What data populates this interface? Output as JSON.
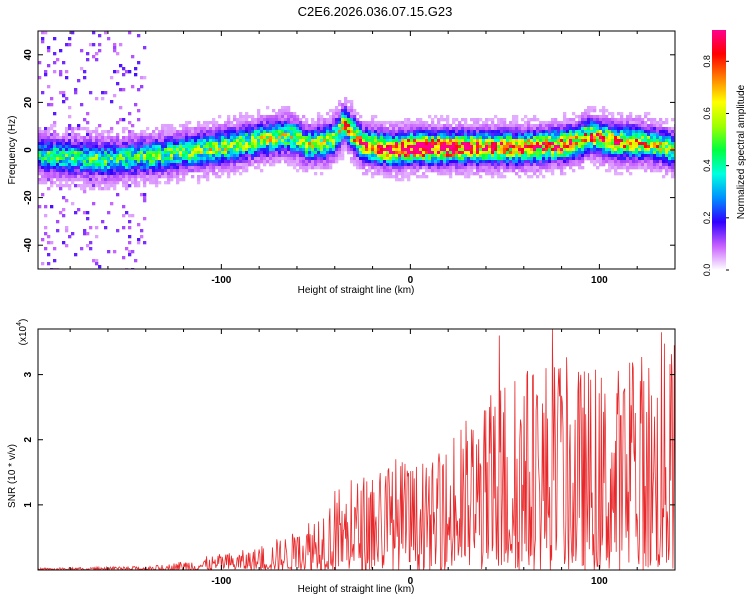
{
  "chart_data": [
    {
      "type": "heatmap",
      "title": "C2E6.2026.036.07.15.G23",
      "xlabel": "Height of straight line (km)",
      "ylabel": "Frequency (Hz)",
      "xlim": [
        -197,
        140
      ],
      "ylim": [
        -50,
        50
      ],
      "x_ticks": [
        -100,
        0,
        100
      ],
      "x_tick_labels": [
        "-100",
        "0",
        "100"
      ],
      "y_ticks": [
        -40,
        -20,
        0,
        20,
        40
      ],
      "y_tick_labels": [
        "-40",
        "-20",
        "0",
        "20",
        "40"
      ],
      "ridge_center": {
        "x": [
          -197,
          -180,
          -160,
          -140,
          -120,
          -100,
          -80,
          -65,
          -60,
          -55,
          -45,
          -40,
          -35,
          -25,
          -10,
          0,
          20,
          40,
          60,
          80,
          90,
          95,
          100,
          110,
          120,
          130,
          140
        ],
        "y": [
          -2,
          -3,
          -4,
          -3,
          -1,
          1,
          4,
          6,
          5,
          2,
          3,
          5,
          11,
          2,
          0,
          1,
          1,
          1,
          1,
          2,
          4,
          6,
          5,
          3,
          3,
          2,
          0
        ]
      },
      "ridge_peak_amplitude": {
        "x": [
          -197,
          -180,
          -150,
          -120,
          -100,
          -80,
          -60,
          -40,
          -30,
          -10,
          0,
          20,
          40,
          60,
          80,
          95,
          110,
          130,
          140
        ],
        "a": [
          0.3,
          0.35,
          0.35,
          0.4,
          0.45,
          0.45,
          0.45,
          0.45,
          0.6,
          0.8,
          0.85,
          0.85,
          0.7,
          0.65,
          0.7,
          0.6,
          0.6,
          0.5,
          0.45
        ]
      },
      "colorbar": {
        "label": "Normalized spectral amplitude",
        "range": [
          0,
          0.92
        ],
        "ticks": [
          0.0,
          0.2,
          0.4,
          0.6,
          0.8
        ],
        "tick_labels": [
          "0.0",
          "0.2",
          "0.4",
          "0.6",
          "0.8"
        ],
        "colors": [
          "#ffffff",
          "#c860ff",
          "#3000ff",
          "#0090ff",
          "#00ffe0",
          "#00ff40",
          "#a0ff00",
          "#ffff00",
          "#ff8000",
          "#ff0000",
          "#ff0090"
        ]
      }
    },
    {
      "type": "line",
      "xlabel": "Height of straight line (km)",
      "ylabel": "SNR (10 * v/v)",
      "y_multiplier": "(x10",
      "y_multiplier_exp": "4",
      "y_multiplier_close": ")",
      "xlim": [
        -197,
        140
      ],
      "ylim": [
        0,
        3.7
      ],
      "x_ticks": [
        -100,
        0,
        100
      ],
      "x_tick_labels": [
        "-100",
        "0",
        "100"
      ],
      "y_ticks": [
        1,
        2,
        3
      ],
      "y_tick_labels": [
        "1",
        "2",
        "3"
      ],
      "line_color": "#e8282a",
      "envelope": {
        "x": [
          -197,
          -170,
          -150,
          -130,
          -120,
          -110,
          -100,
          -90,
          -80,
          -70,
          -60,
          -50,
          -40,
          -30,
          -20,
          -10,
          0,
          10,
          20,
          30,
          40,
          50,
          60,
          70,
          80,
          90,
          100,
          110,
          120,
          130,
          140
        ],
        "peak": [
          0.03,
          0.04,
          0.05,
          0.08,
          0.15,
          0.2,
          0.25,
          0.3,
          0.35,
          0.5,
          0.6,
          1.0,
          1.3,
          1.4,
          1.6,
          1.8,
          1.7,
          1.6,
          2.0,
          2.4,
          2.6,
          3.1,
          3.2,
          3.4,
          3.3,
          3.2,
          3.1,
          3.2,
          3.4,
          3.5,
          3.6
        ]
      },
      "highlight_peaks": [
        {
          "x": 47,
          "y": 3.6
        },
        {
          "x": 75,
          "y": 3.7
        },
        {
          "x": 133,
          "y": 3.65
        }
      ]
    }
  ]
}
